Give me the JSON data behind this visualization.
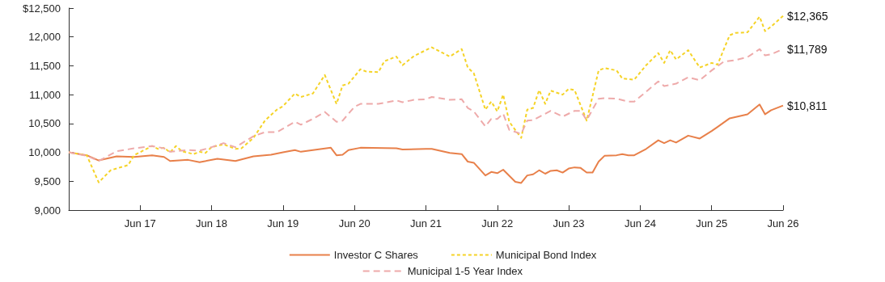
{
  "chart_data": {
    "type": "line",
    "marker": "none",
    "grid": false,
    "legend": "bottom",
    "xlim": [
      "2016-06",
      "2026-06"
    ],
    "xticks": [
      {
        "value": "2017-06",
        "label": "Jun 17"
      },
      {
        "value": "2018-06",
        "label": "Jun 18"
      },
      {
        "value": "2019-06",
        "label": "Jun 19"
      },
      {
        "value": "2020-06",
        "label": "Jun 20"
      },
      {
        "value": "2021-06",
        "label": "Jun 21"
      },
      {
        "value": "2022-06",
        "label": "Jun 22"
      },
      {
        "value": "2023-06",
        "label": "Jun 23"
      },
      {
        "value": "2024-06",
        "label": "Jun 24"
      },
      {
        "value": "2025-06",
        "label": "Jun 25"
      },
      {
        "value": "2026-06",
        "label": "Jun 26"
      }
    ],
    "ylim": [
      9000,
      12500
    ],
    "yticks": [
      {
        "value": 9000,
        "label": "9,000"
      },
      {
        "value": 9500,
        "label": "9,500"
      },
      {
        "value": 10000,
        "label": "10,000"
      },
      {
        "value": 10500,
        "label": "10,500"
      },
      {
        "value": 11000,
        "label": "11,000"
      },
      {
        "value": 11500,
        "label": "11,500"
      },
      {
        "value": 12000,
        "label": "12,000"
      },
      {
        "value": 12500,
        "label": "$12,500"
      }
    ],
    "annotations": [
      {
        "text": "$12,365",
        "x": "2026-06",
        "y": 12365
      },
      {
        "text": "$11,789",
        "x": "2026-06",
        "y": 11789
      },
      {
        "text": "$10,811",
        "x": "2026-06",
        "y": 10811
      }
    ],
    "series": [
      {
        "name": "Investor C Shares",
        "color": "#e8804a",
        "line_style": "solid",
        "x": [
          "2016-06",
          "2016-09",
          "2016-11",
          "2017-02",
          "2017-05",
          "2017-08",
          "2017-10",
          "2017-11",
          "2018-02",
          "2018-04",
          "2018-07",
          "2018-10",
          "2019-01",
          "2019-04",
          "2019-06",
          "2019-08",
          "2019-09",
          "2020-02",
          "2020-03",
          "2020-04",
          "2020-05",
          "2020-07",
          "2021-01",
          "2021-02",
          "2021-06",
          "2021-07",
          "2021-10",
          "2021-12",
          "2022-01",
          "2022-02",
          "2022-04",
          "2022-05",
          "2022-06",
          "2022-07",
          "2022-09",
          "2022-10",
          "2022-11",
          "2022-12",
          "2023-01",
          "2023-02",
          "2023-03",
          "2023-04",
          "2023-05",
          "2023-06",
          "2023-07",
          "2023-08",
          "2023-09",
          "2023-10",
          "2023-11",
          "2023-12",
          "2024-02",
          "2024-03",
          "2024-04",
          "2024-05",
          "2024-07",
          "2024-09",
          "2024-10",
          "2024-11",
          "2024-12",
          "2025-02",
          "2025-04",
          "2025-06",
          "2025-07",
          "2025-09",
          "2025-12",
          "2026-02",
          "2026-03",
          "2026-04",
          "2026-06"
        ],
        "values": [
          10000,
          9950,
          9860,
          9930,
          9920,
          9950,
          9920,
          9850,
          9870,
          9830,
          9890,
          9850,
          9930,
          9960,
          10000,
          10040,
          10010,
          10080,
          9950,
          9960,
          10040,
          10080,
          10070,
          10050,
          10060,
          10060,
          9990,
          9970,
          9840,
          9820,
          9600,
          9660,
          9640,
          9700,
          9490,
          9470,
          9600,
          9620,
          9690,
          9630,
          9680,
          9690,
          9650,
          9720,
          9740,
          9730,
          9650,
          9650,
          9840,
          9940,
          9950,
          9970,
          9950,
          9950,
          10060,
          10210,
          10160,
          10210,
          10170,
          10290,
          10240,
          10370,
          10440,
          10590,
          10660,
          10830,
          10660,
          10730,
          10811
        ]
      },
      {
        "name": "Municipal Bond Index",
        "color": "#f5d327",
        "line_style": "dotted",
        "x": [
          "2016-06",
          "2016-09",
          "2016-11",
          "2017-01",
          "2017-04",
          "2017-05",
          "2017-08",
          "2017-09",
          "2017-10",
          "2017-11",
          "2017-12",
          "2018-01",
          "2018-03",
          "2018-04",
          "2018-05",
          "2018-06",
          "2018-08",
          "2018-10",
          "2018-11",
          "2019-01",
          "2019-03",
          "2019-05",
          "2019-06",
          "2019-08",
          "2019-09",
          "2019-11",
          "2020-01",
          "2020-03",
          "2020-04",
          "2020-05",
          "2020-07",
          "2020-08",
          "2020-10",
          "2020-11",
          "2021-01",
          "2021-02",
          "2021-04",
          "2021-05",
          "2021-07",
          "2021-10",
          "2021-12",
          "2022-01",
          "2022-02",
          "2022-04",
          "2022-05",
          "2022-06",
          "2022-07",
          "2022-08",
          "2022-10",
          "2022-11",
          "2022-12",
          "2023-01",
          "2023-02",
          "2023-03",
          "2023-05",
          "2023-06",
          "2023-07",
          "2023-09",
          "2023-11",
          "2023-12",
          "2024-02",
          "2024-03",
          "2024-05",
          "2024-07",
          "2024-09",
          "2024-10",
          "2024-11",
          "2024-12",
          "2025-02",
          "2025-04",
          "2025-06",
          "2025-07",
          "2025-09",
          "2025-10",
          "2025-12",
          "2026-02",
          "2026-03",
          "2026-04",
          "2026-06"
        ],
        "values": [
          10000,
          9950,
          9480,
          9690,
          9780,
          9950,
          10110,
          10060,
          10080,
          10000,
          10110,
          10020,
          9970,
          10010,
          9990,
          10090,
          10140,
          10060,
          10070,
          10250,
          10550,
          10740,
          10800,
          11020,
          10960,
          11020,
          11340,
          10840,
          11160,
          11190,
          11440,
          11400,
          11390,
          11580,
          11660,
          11510,
          11670,
          11720,
          11820,
          11660,
          11790,
          11470,
          11370,
          10740,
          10880,
          10710,
          11000,
          10530,
          10250,
          10740,
          10770,
          11080,
          10840,
          11070,
          11000,
          11100,
          11080,
          10550,
          11420,
          11460,
          11420,
          11280,
          11260,
          11510,
          11720,
          11550,
          11770,
          11610,
          11770,
          11470,
          11550,
          11520,
          12030,
          12070,
          12080,
          12350,
          12100,
          12180,
          12365
        ]
      },
      {
        "name": "Municipal 1-5 Year Index",
        "color": "#eeaaaa",
        "line_style": "dashed",
        "x": [
          "2016-06",
          "2016-09",
          "2016-11",
          "2017-02",
          "2017-05",
          "2017-08",
          "2017-10",
          "2017-11",
          "2018-02",
          "2018-04",
          "2018-06",
          "2018-08",
          "2018-10",
          "2019-01",
          "2019-03",
          "2019-05",
          "2019-08",
          "2019-09",
          "2019-11",
          "2020-01",
          "2020-03",
          "2020-04",
          "2020-06",
          "2020-07",
          "2020-10",
          "2021-01",
          "2021-02",
          "2021-04",
          "2021-06",
          "2021-07",
          "2021-10",
          "2021-12",
          "2022-01",
          "2022-02",
          "2022-04",
          "2022-05",
          "2022-06",
          "2022-07",
          "2022-08",
          "2022-10",
          "2022-11",
          "2022-12",
          "2023-03",
          "2023-05",
          "2023-07",
          "2023-08",
          "2023-09",
          "2023-11",
          "2023-12",
          "2024-02",
          "2024-04",
          "2024-05",
          "2024-07",
          "2024-09",
          "2024-10",
          "2024-12",
          "2025-02",
          "2025-04",
          "2025-06",
          "2025-08",
          "2025-10",
          "2025-12",
          "2026-02",
          "2026-03",
          "2026-04",
          "2026-06"
        ],
        "values": [
          10000,
          9940,
          9850,
          10020,
          10070,
          10110,
          10070,
          10010,
          10040,
          10030,
          10090,
          10160,
          10090,
          10280,
          10350,
          10350,
          10530,
          10480,
          10580,
          10700,
          10530,
          10550,
          10790,
          10840,
          10840,
          10900,
          10870,
          10910,
          10920,
          10960,
          10910,
          10920,
          10770,
          10710,
          10450,
          10580,
          10580,
          10670,
          10390,
          10320,
          10550,
          10560,
          10720,
          10620,
          10720,
          10720,
          10560,
          10930,
          10940,
          10930,
          10880,
          10880,
          11050,
          11230,
          11150,
          11190,
          11300,
          11250,
          11420,
          11570,
          11600,
          11650,
          11790,
          11680,
          11700,
          11789
        ]
      }
    ]
  }
}
